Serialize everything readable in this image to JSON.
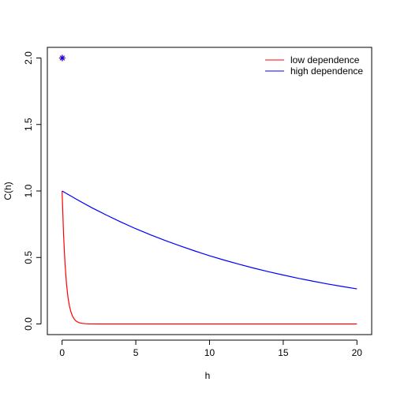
{
  "chart_data": {
    "type": "line",
    "title": "",
    "xlabel": "h",
    "ylabel": "C(h)",
    "xlim": [
      -1,
      21
    ],
    "ylim": [
      -0.08,
      2.08
    ],
    "xticks": [
      0,
      5,
      10,
      15,
      20
    ],
    "yticks": [
      0.0,
      0.5,
      1.0,
      1.5,
      2.0
    ],
    "xtick_labels": [
      "0",
      "5",
      "10",
      "15",
      "20"
    ],
    "ytick_labels": [
      "0.0",
      "0.5",
      "1.0",
      "1.5",
      "2.0"
    ],
    "grid": false,
    "legend_position": "top-right",
    "series": [
      {
        "name": "low dependence",
        "color": "#ff0000",
        "x": [
          0,
          0.1,
          0.2,
          0.3,
          0.4,
          0.5,
          0.6,
          0.7,
          0.8,
          0.9,
          1.0,
          1.2,
          1.4,
          1.6,
          1.8,
          2.0,
          2.5,
          3,
          4,
          5,
          6,
          8,
          10,
          12,
          14,
          16,
          18,
          20
        ],
        "y": [
          1.0,
          0.67,
          0.45,
          0.3,
          0.2,
          0.135,
          0.091,
          0.061,
          0.041,
          0.027,
          0.018,
          0.008,
          0.004,
          0.002,
          0.001,
          0.0005,
          0.0,
          0.0,
          0.0,
          0.0,
          0.0,
          0.0,
          0.0,
          0.0,
          0.0,
          0.0,
          0.0,
          0.0
        ]
      },
      {
        "name": "high dependence",
        "color": "#0000ff",
        "x": [
          0,
          1,
          2,
          3,
          4,
          5,
          6,
          7,
          8,
          9,
          10,
          11,
          12,
          13,
          14,
          15,
          16,
          17,
          18,
          19,
          20
        ],
        "y": [
          1.0,
          0.936,
          0.875,
          0.819,
          0.766,
          0.716,
          0.67,
          0.627,
          0.587,
          0.549,
          0.513,
          0.48,
          0.449,
          0.42,
          0.393,
          0.368,
          0.344,
          0.322,
          0.301,
          0.282,
          0.264
        ]
      }
    ],
    "markers": [
      {
        "x": 0,
        "y": 2.0,
        "symbol": "asterisk",
        "colors": [
          "#ff0000",
          "#0000ff"
        ]
      }
    ]
  }
}
